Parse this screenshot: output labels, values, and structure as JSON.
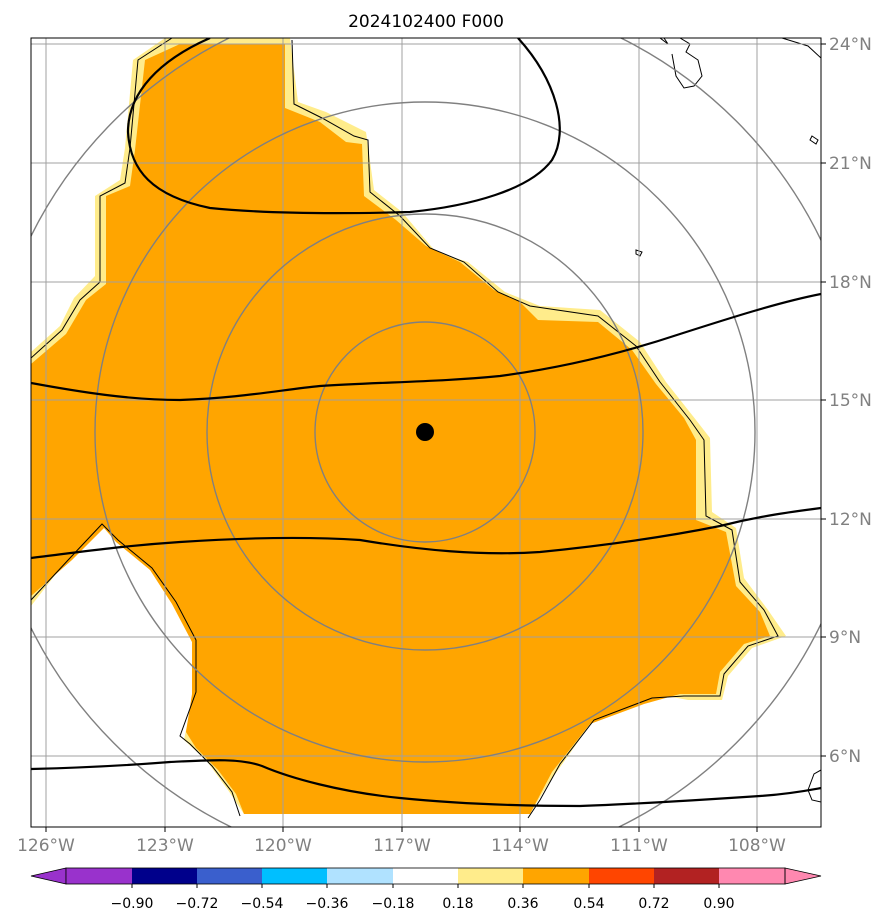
{
  "map": {
    "title": "2024102400 F000",
    "lat_ticks": [
      "24°N",
      "21°N",
      "18°N",
      "15°N",
      "12°N",
      "9°N",
      "6°N"
    ],
    "lon_ticks": [
      "126°W",
      "123°W",
      "120°W",
      "117°W",
      "114°W",
      "111°W",
      "108°W"
    ],
    "center_marker": {
      "lon": -116.5,
      "lat": 14.2
    },
    "colors": {
      "fill_main": "#ffa500",
      "fill_edge": "#ffec8b",
      "gridline": "#a0a0a0",
      "range_rings": "#808080",
      "contours": "#000000"
    }
  },
  "colorbar": {
    "labels": [
      "−0.90",
      "−0.72",
      "−0.54",
      "−0.36",
      "−0.18",
      "0.18",
      "0.36",
      "0.54",
      "0.72",
      "0.90"
    ],
    "colors": [
      "#9932cc",
      "#00008b",
      "#3a5fcd",
      "#00bfff",
      "#b0e2ff",
      "#ffffff",
      "#ffec8b",
      "#ffa500",
      "#ff4500",
      "#b22222",
      "#ff88b0",
      "#ff88b0"
    ]
  }
}
